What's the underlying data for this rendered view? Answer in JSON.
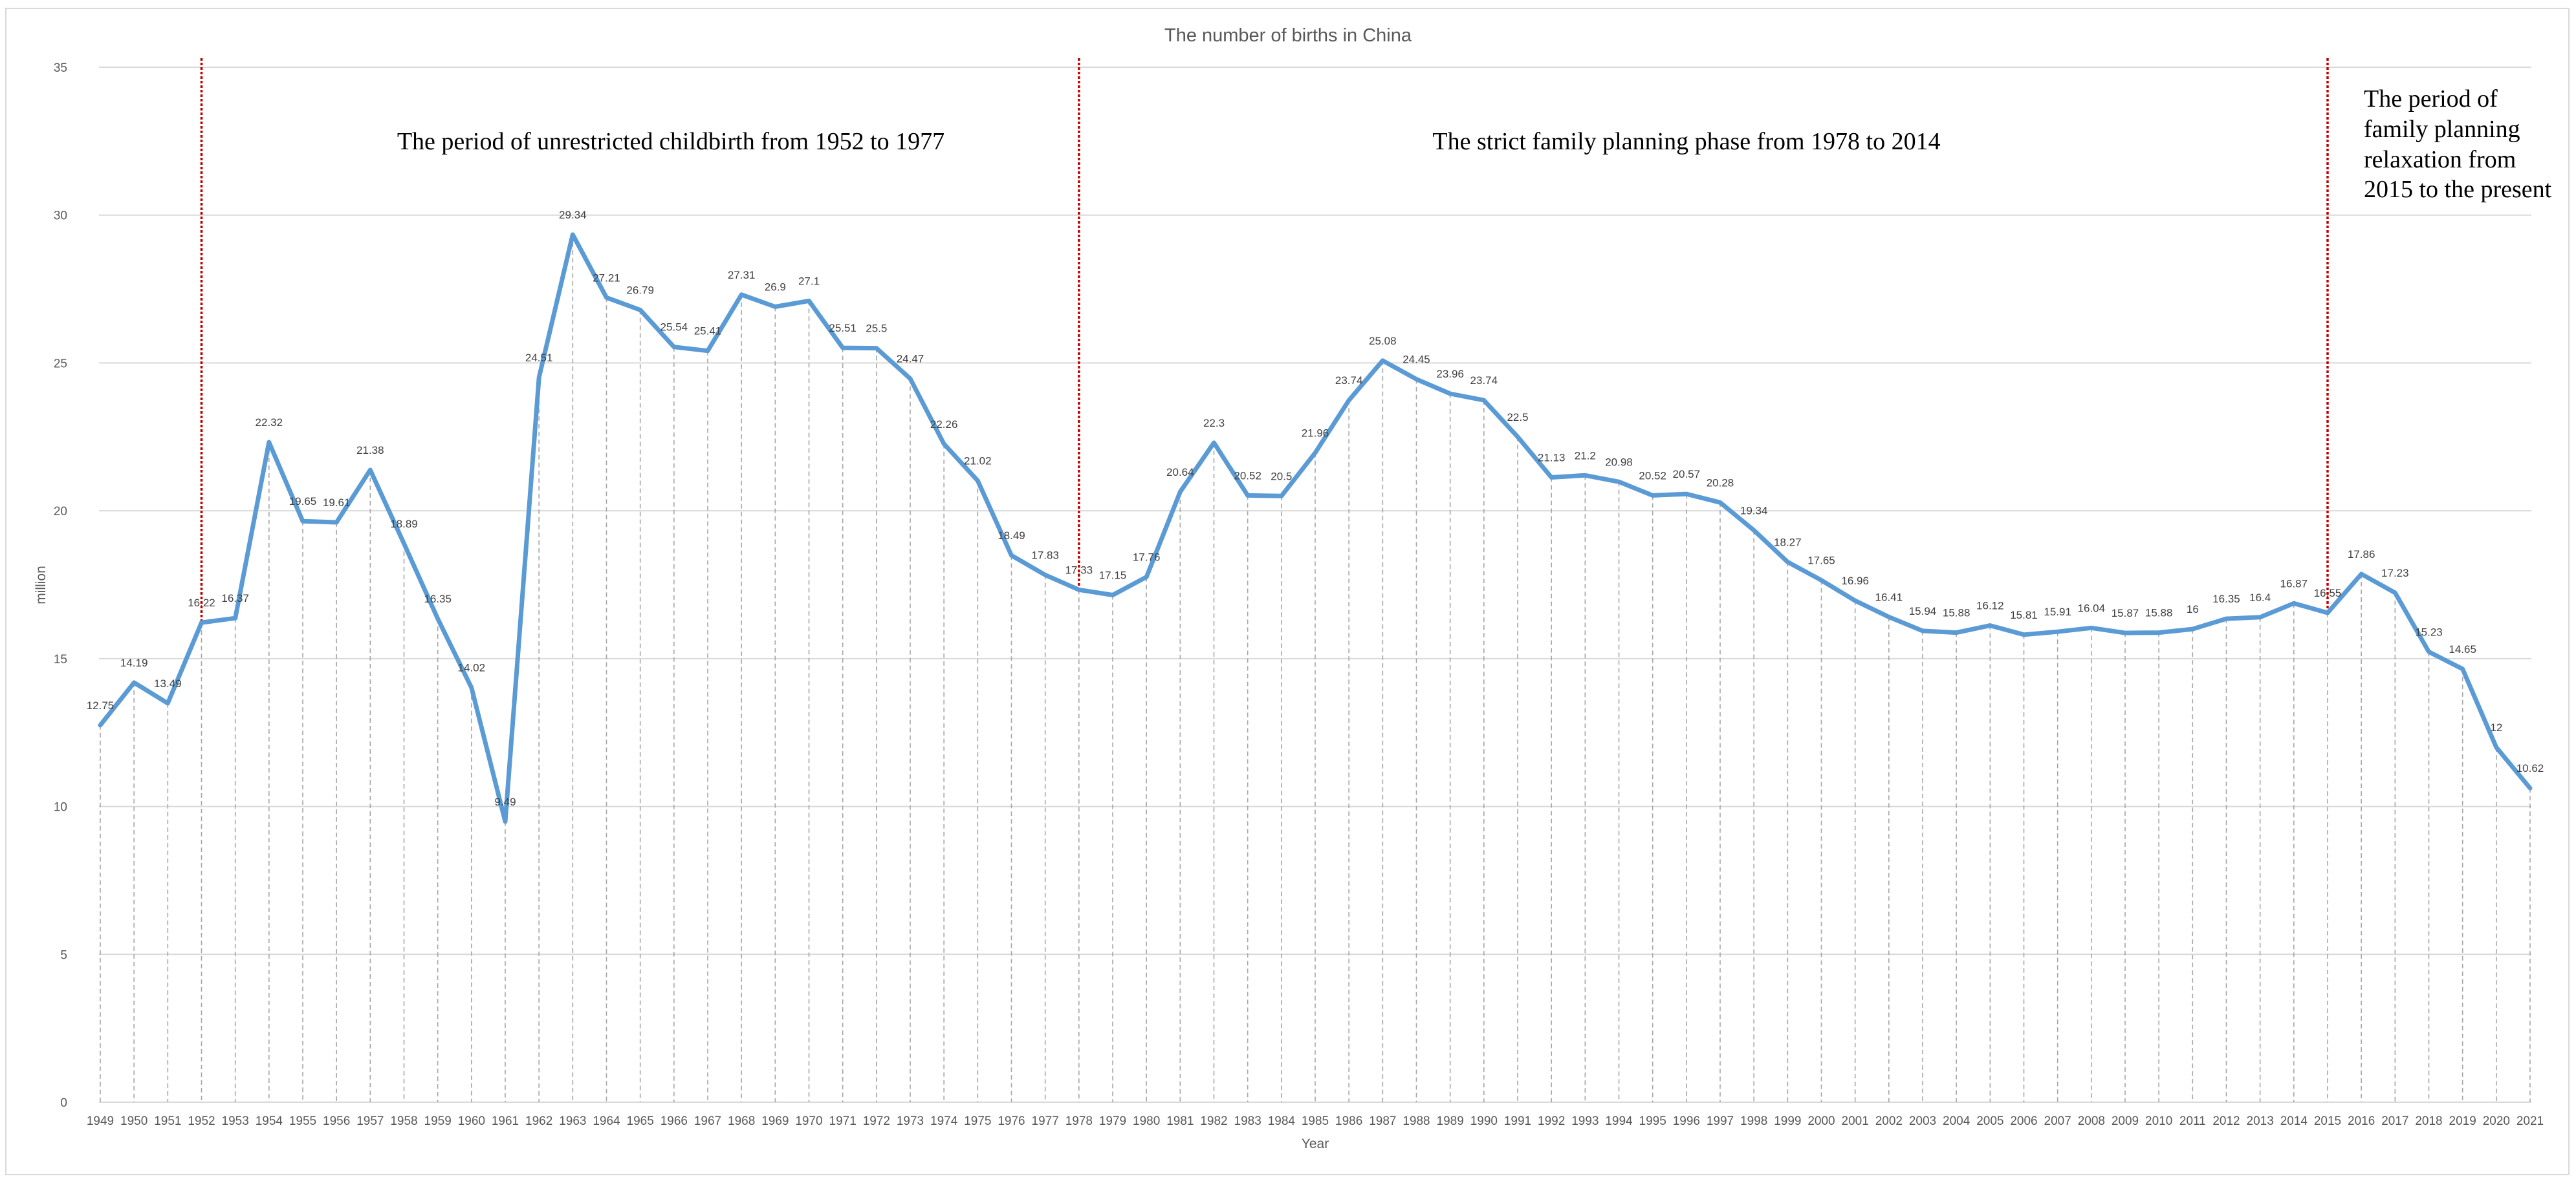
{
  "chart_data": {
    "type": "line",
    "title": "The number of births in China",
    "xlabel": "Year",
    "ylabel": "million",
    "ylim": [
      0,
      35
    ],
    "yticks": [
      0,
      5,
      10,
      15,
      20,
      25,
      30,
      35
    ],
    "grid": "horizontal",
    "drop_lines": true,
    "line_color": "#5b9bd5",
    "gridline_color": "#d9d9d9",
    "dropline_color": "#a6a6a6",
    "marker_line_color": "#c00000",
    "categories": [
      "1949",
      "1950",
      "1951",
      "1952",
      "1953",
      "1954",
      "1955",
      "1956",
      "1957",
      "1958",
      "1959",
      "1960",
      "1961",
      "1962",
      "1963",
      "1964",
      "1965",
      "1966",
      "1967",
      "1968",
      "1969",
      "1970",
      "1971",
      "1972",
      "1973",
      "1974",
      "1975",
      "1976",
      "1977",
      "1978",
      "1979",
      "1980",
      "1981",
      "1982",
      "1983",
      "1984",
      "1985",
      "1986",
      "1987",
      "1988",
      "1989",
      "1990",
      "1991",
      "1992",
      "1993",
      "1994",
      "1995",
      "1996",
      "1997",
      "1998",
      "1999",
      "2000",
      "2001",
      "2002",
      "2003",
      "2004",
      "2005",
      "2006",
      "2007",
      "2008",
      "2009",
      "2010",
      "2011",
      "2012",
      "2013",
      "2014",
      "2015",
      "2016",
      "2017",
      "2018",
      "2019",
      "2020",
      "2021"
    ],
    "values": [
      12.75,
      14.19,
      13.49,
      16.22,
      16.37,
      22.32,
      19.65,
      19.61,
      21.38,
      18.89,
      16.35,
      14.02,
      9.49,
      24.51,
      29.34,
      27.21,
      26.79,
      25.54,
      25.41,
      27.31,
      26.9,
      27.1,
      25.51,
      25.5,
      24.47,
      22.26,
      21.02,
      18.49,
      17.83,
      17.33,
      17.15,
      17.76,
      20.64,
      22.3,
      20.52,
      20.5,
      21.96,
      23.74,
      25.08,
      24.45,
      23.96,
      23.74,
      22.5,
      21.13,
      21.2,
      20.98,
      20.52,
      20.57,
      20.28,
      19.34,
      18.27,
      17.65,
      16.96,
      16.41,
      15.94,
      15.88,
      16.12,
      15.81,
      15.91,
      16.04,
      15.87,
      15.88,
      16,
      16.35,
      16.4,
      16.87,
      16.55,
      17.86,
      17.23,
      15.23,
      14.65,
      12,
      10.62
    ],
    "data_labels": [
      "12.75",
      "14.19",
      "13.49",
      "16.22",
      "16.37",
      "22.32",
      "19.65",
      "19.61",
      "21.38",
      "18.89",
      "16.35",
      "14.02",
      "9.49",
      "24.51",
      "29.34",
      "27.21",
      "26.79",
      "25.54",
      "25.41",
      "27.31",
      "26.9",
      "27.1",
      "25.51",
      "25.5",
      "24.47",
      "22.26",
      "21.02",
      "18.49",
      "17.83",
      "17.33",
      "17.15",
      "17.76",
      "20.64",
      "22.3",
      "20.52",
      "20.5",
      "21.96",
      "23.74",
      "25.08",
      "24.45",
      "23.96",
      "23.74",
      "22.5",
      "21.13",
      "21.2",
      "20.98",
      "20.52",
      "20.57",
      "20.28",
      "19.34",
      "18.27",
      "17.65",
      "16.96",
      "16.41",
      "15.94",
      "15.88",
      "16.12",
      "15.81",
      "15.91",
      "16.04",
      "15.87",
      "15.88",
      "16",
      "16.35",
      "16.4",
      "16.87",
      "16.55",
      "17.86",
      "17.23",
      "15.23",
      "14.65",
      "12",
      "10.62"
    ],
    "period_markers": [
      "1952",
      "1978",
      "2015"
    ],
    "annotations": [
      {
        "text": "The period of unrestricted childbirth from 1952 to 1977"
      },
      {
        "text": "The strict family planning phase from 1978 to 2014"
      },
      {
        "lines": [
          "The period of",
          "family planning",
          "relaxation from",
          "2015 to the present"
        ]
      }
    ]
  }
}
